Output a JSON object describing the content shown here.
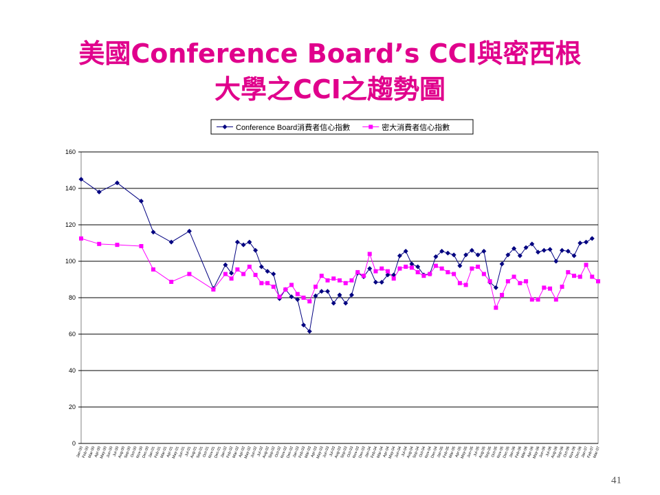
{
  "title_lines": [
    "美國Conference Board’s CCI與密西根",
    "大學之CCI之趨勢圖"
  ],
  "page_number": "41",
  "chart_data": {
    "type": "line",
    "categories": [
      "Jan-00",
      "Feb-00",
      "Mar-00",
      "Apr-00",
      "May-00",
      "Jun-00",
      "Jul-00",
      "Aug-00",
      "Sep-00",
      "Oct-00",
      "Nov-00",
      "Dec-00",
      "Jan-01",
      "Feb-01",
      "Mar-01",
      "Apr-01",
      "May-01",
      "Jun-01",
      "Jul-01",
      "Aug-01",
      "Sep-01",
      "Oct-01",
      "Nov-01",
      "Dec-01",
      "Jan-02",
      "Feb-02",
      "Mar-02",
      "Apr-02",
      "May-02",
      "Jun-02",
      "Jul-02",
      "Aug-02",
      "Sep-02",
      "Oct-02",
      "Nov-02",
      "Dec-02",
      "Jan-03",
      "Feb-03",
      "Mar-03",
      "Apr-03",
      "May-03",
      "Jun-03",
      "Jul-03",
      "Aug-03",
      "Sep-03",
      "Oct-03",
      "Nov-03",
      "Dec-03",
      "Jan-04",
      "Feb-04",
      "Mar-04",
      "Apr-04",
      "May-04",
      "Jun-04",
      "Jul-04",
      "Aug-04",
      "Sep-04",
      "Oct-04",
      "Nov-04",
      "Dec-04",
      "Jan-05",
      "Feb-05",
      "Mar-05",
      "Apr-05",
      "May-05",
      "Jun-05",
      "Jul-05",
      "Aug-05",
      "Sep-05",
      "Oct-05",
      "Nov-05",
      "Dec-05",
      "Jan-06",
      "Feb-06",
      "Mar-06",
      "Apr-06",
      "May-06",
      "Jun-06",
      "Jul-06",
      "Aug-06",
      "Sep-06",
      "Oct-06",
      "Nov-06",
      "Dec-06",
      "Jan-07",
      "Feb-07",
      "Mar-07"
    ],
    "series": [
      {
        "name": "Conference Board消費者信心指數",
        "color": "#000080",
        "marker": "diamond",
        "values": [
          145,
          null,
          null,
          138,
          null,
          null,
          143,
          null,
          null,
          null,
          133,
          null,
          116,
          null,
          null,
          110.5,
          null,
          null,
          116.5,
          null,
          null,
          null,
          85,
          null,
          98,
          93.5,
          110.5,
          109,
          110.5,
          106,
          97,
          94.5,
          93,
          79.5,
          84.5,
          80.5,
          79,
          65,
          61.5,
          81,
          83.5,
          83.5,
          77,
          81.5,
          77,
          81.5,
          93.5,
          91.5,
          96,
          88.5,
          88.5,
          92.5,
          92.5,
          103,
          105.5,
          98.5,
          97,
          92.5,
          93,
          102.5,
          105.5,
          104.5,
          103.5,
          97.5,
          103.5,
          106,
          103.5,
          105.5,
          88.5,
          85.5,
          98.5,
          103.5,
          107,
          103,
          107.5,
          109.5,
          105,
          106,
          106.5,
          100,
          106,
          105.5,
          103,
          110,
          110.5,
          112.5,
          null
        ]
      },
      {
        "name": "密大消費者信心指數",
        "color": "#ff00ff",
        "marker": "square",
        "values": [
          112.5,
          null,
          null,
          109.5,
          null,
          null,
          109,
          null,
          null,
          null,
          108.3,
          null,
          95.5,
          null,
          null,
          88.7,
          null,
          null,
          93,
          null,
          null,
          null,
          84.5,
          null,
          93,
          90.5,
          95.5,
          93,
          97,
          92.5,
          88,
          88,
          86,
          80.5,
          84.5,
          87,
          82,
          80,
          78,
          86,
          92,
          89.5,
          90.5,
          89.5,
          88,
          89.5,
          94,
          92,
          104,
          94.5,
          96,
          94.5,
          90.5,
          96,
          97,
          96.5,
          94,
          92,
          93,
          97.5,
          96,
          94,
          93,
          88,
          87,
          96,
          97,
          93,
          89,
          74.5,
          81.5,
          89,
          91.5,
          88,
          89,
          79,
          79,
          85.5,
          85,
          79,
          86,
          94,
          92,
          91.5,
          98,
          91.5,
          89
        ]
      }
    ],
    "ylim": [
      0,
      160
    ],
    "yticks": [
      0,
      20,
      40,
      60,
      80,
      100,
      120,
      140,
      160
    ],
    "grid": true,
    "legend": "top"
  }
}
